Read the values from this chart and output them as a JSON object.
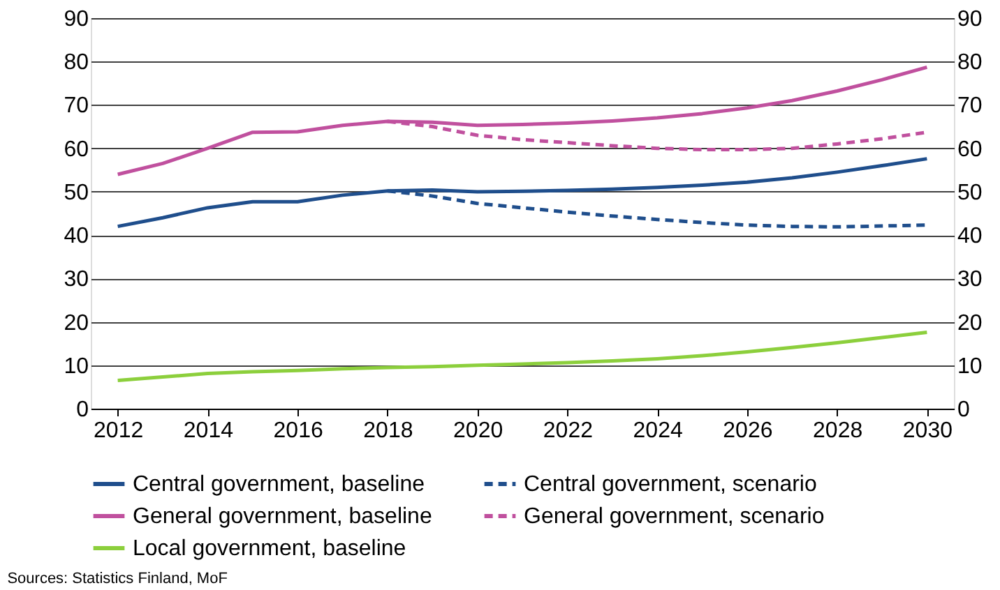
{
  "chart_data": {
    "type": "line",
    "x": [
      2012,
      2013,
      2014,
      2015,
      2016,
      2017,
      2018,
      2019,
      2020,
      2021,
      2022,
      2023,
      2024,
      2025,
      2026,
      2027,
      2028,
      2029,
      2030
    ],
    "series": [
      {
        "name": "Central government, baseline",
        "color": "#1f4e8c",
        "line_style": "solid",
        "values": [
          42,
          44,
          46.3,
          47.7,
          47.7,
          49.2,
          50.2,
          50.4,
          50.0,
          50.1,
          50.3,
          50.6,
          51.0,
          51.5,
          52.2,
          53.2,
          54.5,
          56.0,
          57.6
        ]
      },
      {
        "name": "Central government, scenario",
        "color": "#1f4e8c",
        "line_style": "dashed",
        "values": [
          null,
          null,
          null,
          null,
          null,
          null,
          50.2,
          49.0,
          47.3,
          46.3,
          45.3,
          44.4,
          43.6,
          42.9,
          42.3,
          42.0,
          41.9,
          42.1,
          42.3
        ]
      },
      {
        "name": "General government, baseline",
        "color": "#c0509e",
        "line_style": "solid",
        "values": [
          54,
          56.5,
          60,
          63.7,
          63.8,
          65.3,
          66.2,
          66.0,
          65.3,
          65.5,
          65.8,
          66.3,
          67.0,
          68.0,
          69.3,
          71.0,
          73.2,
          75.8,
          78.7
        ]
      },
      {
        "name": "General government, scenario",
        "color": "#c0509e",
        "line_style": "dashed",
        "values": [
          null,
          null,
          null,
          null,
          null,
          null,
          66.2,
          65.0,
          63.0,
          62.0,
          61.3,
          60.6,
          60.0,
          59.7,
          59.7,
          60.0,
          61.0,
          62.2,
          63.7
        ]
      },
      {
        "name": "Local government, baseline",
        "color": "#8ccf3c",
        "line_style": "solid",
        "values": [
          6.5,
          7.3,
          8.1,
          8.5,
          8.8,
          9.2,
          9.5,
          9.7,
          10.0,
          10.3,
          10.6,
          11.0,
          11.5,
          12.2,
          13.1,
          14.1,
          15.2,
          16.4,
          17.6
        ]
      }
    ],
    "xlim": [
      2011.4,
      2030.6
    ],
    "xticks": [
      2012,
      2014,
      2016,
      2018,
      2020,
      2022,
      2024,
      2026,
      2028,
      2030
    ],
    "ylim": [
      0,
      90
    ],
    "yticks": [
      0,
      10,
      20,
      30,
      40,
      50,
      60,
      70,
      80,
      90
    ],
    "y2lim": [
      0,
      90
    ],
    "y2ticks": [
      0,
      10,
      20,
      30,
      40,
      50,
      60,
      70,
      80,
      90
    ],
    "grid": "y",
    "legend": "bottom",
    "marker": "none",
    "annotations": [
      "Sources: Statistics Finland, MoF"
    ]
  }
}
